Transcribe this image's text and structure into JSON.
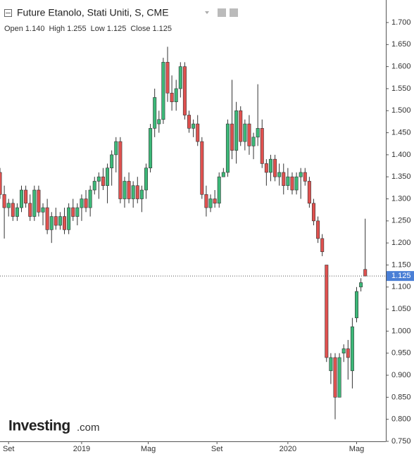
{
  "chart_data": {
    "type": "candlestick",
    "title": "Future Etanolo, Stati Uniti, S, CME",
    "legend": [
      {
        "label": "Open",
        "value": "1.140"
      },
      {
        "label": "High",
        "value": "1.255"
      },
      {
        "label": "Low",
        "value": "1.125"
      },
      {
        "label": "Close",
        "value": "1.125"
      }
    ],
    "logo": {
      "name": "Investing",
      "suffix": ".com"
    },
    "up_color": "#3cb878",
    "down_color": "#e0514f",
    "last_price_color": "#4a7fd6",
    "open": [
      1.36,
      1.31,
      1.28,
      1.29,
      1.26,
      1.28,
      1.32,
      1.29,
      1.26,
      1.32,
      1.27,
      1.28,
      1.23,
      1.26,
      1.24,
      1.26,
      1.23,
      1.28,
      1.26,
      1.28,
      1.3,
      1.28,
      1.32,
      1.34,
      1.35,
      1.33,
      1.37,
      1.4,
      1.43,
      1.3,
      1.34,
      1.3,
      1.33,
      1.3,
      1.32,
      1.37,
      1.46,
      1.47,
      1.48,
      1.61,
      1.54,
      1.52,
      1.55,
      1.6,
      1.49,
      1.46,
      1.47,
      1.43,
      1.31,
      1.28,
      1.3,
      1.29,
      1.35,
      1.36,
      1.47,
      1.41,
      1.5,
      1.43,
      1.47,
      1.42,
      1.44,
      1.46,
      1.38,
      1.36,
      1.39,
      1.35,
      1.36,
      1.33,
      1.35,
      1.32,
      1.35,
      1.36,
      1.34,
      1.29,
      1.25,
      1.21,
      1.15,
      0.91,
      0.94,
      0.85,
      0.95,
      0.96,
      0.91,
      1.03,
      1.1,
      1.14
    ],
    "high": [
      1.37,
      1.33,
      1.3,
      1.3,
      1.29,
      1.33,
      1.33,
      1.31,
      1.33,
      1.33,
      1.29,
      1.3,
      1.27,
      1.28,
      1.27,
      1.28,
      1.29,
      1.3,
      1.29,
      1.31,
      1.32,
      1.33,
      1.35,
      1.36,
      1.37,
      1.38,
      1.41,
      1.44,
      1.44,
      1.35,
      1.36,
      1.34,
      1.35,
      1.33,
      1.38,
      1.47,
      1.55,
      1.5,
      1.62,
      1.645,
      1.58,
      1.57,
      1.61,
      1.61,
      1.5,
      1.48,
      1.49,
      1.44,
      1.33,
      1.31,
      1.32,
      1.36,
      1.37,
      1.48,
      1.57,
      1.52,
      1.51,
      1.48,
      1.49,
      1.45,
      1.56,
      1.48,
      1.39,
      1.4,
      1.4,
      1.38,
      1.38,
      1.37,
      1.36,
      1.36,
      1.37,
      1.37,
      1.35,
      1.3,
      1.26,
      1.22,
      1.15,
      0.95,
      0.95,
      0.95,
      0.97,
      0.98,
      1.03,
      1.1,
      1.12,
      1.255
    ],
    "low": [
      1.3,
      1.21,
      1.26,
      1.25,
      1.25,
      1.27,
      1.28,
      1.25,
      1.25,
      1.26,
      1.24,
      1.22,
      1.2,
      1.23,
      1.23,
      1.22,
      1.22,
      1.25,
      1.24,
      1.25,
      1.27,
      1.26,
      1.31,
      1.3,
      1.32,
      1.29,
      1.33,
      1.36,
      1.29,
      1.28,
      1.29,
      1.28,
      1.29,
      1.27,
      1.3,
      1.36,
      1.44,
      1.45,
      1.47,
      1.52,
      1.5,
      1.5,
      1.53,
      1.48,
      1.45,
      1.44,
      1.42,
      1.3,
      1.26,
      1.27,
      1.28,
      1.28,
      1.35,
      1.35,
      1.39,
      1.38,
      1.42,
      1.41,
      1.4,
      1.39,
      1.42,
      1.37,
      1.33,
      1.34,
      1.34,
      1.33,
      1.31,
      1.32,
      1.31,
      1.31,
      1.3,
      1.33,
      1.28,
      1.24,
      1.2,
      1.17,
      0.93,
      0.88,
      0.8,
      0.85,
      0.93,
      0.89,
      0.87,
      1.02,
      1.09,
      1.125
    ],
    "close": [
      1.31,
      1.28,
      1.29,
      1.26,
      1.28,
      1.32,
      1.29,
      1.26,
      1.32,
      1.27,
      1.28,
      1.23,
      1.26,
      1.24,
      1.26,
      1.23,
      1.28,
      1.26,
      1.28,
      1.3,
      1.28,
      1.32,
      1.34,
      1.35,
      1.33,
      1.37,
      1.4,
      1.43,
      1.3,
      1.34,
      1.3,
      1.33,
      1.3,
      1.32,
      1.37,
      1.46,
      1.53,
      1.48,
      1.61,
      1.54,
      1.52,
      1.55,
      1.6,
      1.49,
      1.46,
      1.47,
      1.43,
      1.31,
      1.28,
      1.3,
      1.29,
      1.35,
      1.36,
      1.47,
      1.41,
      1.5,
      1.43,
      1.47,
      1.42,
      1.44,
      1.46,
      1.38,
      1.36,
      1.39,
      1.35,
      1.36,
      1.33,
      1.35,
      1.32,
      1.35,
      1.36,
      1.34,
      1.29,
      1.25,
      1.21,
      1.18,
      0.94,
      0.94,
      0.85,
      0.94,
      0.96,
      0.94,
      1.01,
      1.09,
      1.11,
      1.125
    ],
    "xlim": [
      0,
      89.8
    ],
    "xticks": [
      {
        "value": 2,
        "label": "Set"
      },
      {
        "value": 19,
        "label": "2019"
      },
      {
        "value": 34.5,
        "label": "Mag"
      },
      {
        "value": 50.5,
        "label": "Set"
      },
      {
        "value": 67,
        "label": "2020"
      },
      {
        "value": 83,
        "label": "Mag"
      }
    ],
    "ylim": [
      0.75,
      1.7
    ],
    "yticks": [
      {
        "value": 0.75,
        "label": "0.750"
      },
      {
        "value": 0.8,
        "label": "0.800"
      },
      {
        "value": 0.85,
        "label": "0.850"
      },
      {
        "value": 0.9,
        "label": "0.900"
      },
      {
        "value": 0.95,
        "label": "0.950"
      },
      {
        "value": 1.0,
        "label": "1.000"
      },
      {
        "value": 1.05,
        "label": "1.050"
      },
      {
        "value": 1.1,
        "label": "1.100"
      },
      {
        "value": 1.15,
        "label": "1.150"
      },
      {
        "value": 1.2,
        "label": "1.200"
      },
      {
        "value": 1.25,
        "label": "1.250"
      },
      {
        "value": 1.3,
        "label": "1.300"
      },
      {
        "value": 1.35,
        "label": "1.350"
      },
      {
        "value": 1.4,
        "label": "1.400"
      },
      {
        "value": 1.45,
        "label": "1.450"
      },
      {
        "value": 1.5,
        "label": "1.500"
      },
      {
        "value": 1.55,
        "label": "1.550"
      },
      {
        "value": 1.6,
        "label": "1.600"
      },
      {
        "value": 1.65,
        "label": "1.650"
      },
      {
        "value": 1.7,
        "label": "1.700"
      }
    ]
  }
}
